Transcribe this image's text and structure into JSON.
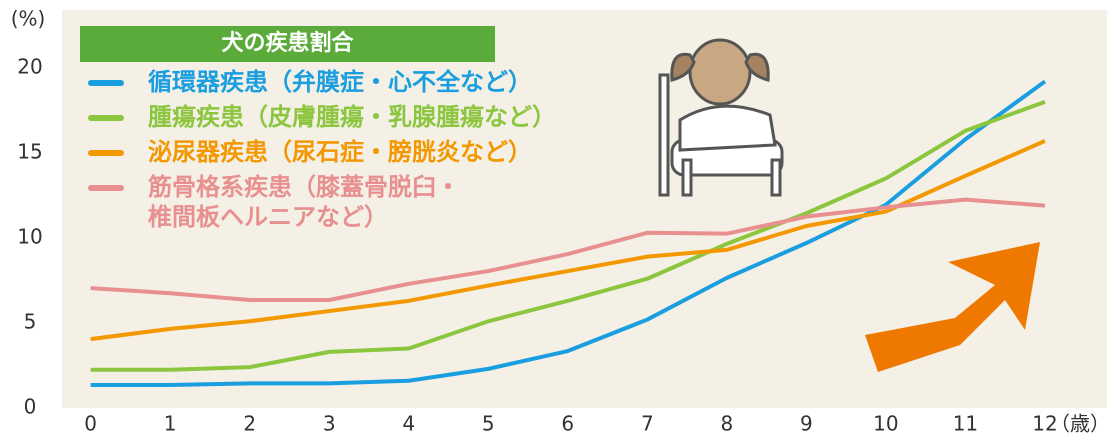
{
  "chart_data": {
    "type": "line",
    "title": "犬の疾患割合",
    "y_label": "(%)",
    "x_label": "（歳）",
    "x": [
      0,
      1,
      2,
      3,
      4,
      5,
      6,
      7,
      8,
      9,
      10,
      11,
      12
    ],
    "xlim": [
      -0.36,
      12.78
    ],
    "ylim": [
      0,
      23.4
    ],
    "yticks": [
      0,
      5,
      10,
      15,
      20
    ],
    "series": [
      {
        "name": "循環器疾患（弁膜症・心不全など）",
        "color": "#1a9ee0",
        "values": [
          1.35,
          1.35,
          1.45,
          1.45,
          1.6,
          2.3,
          3.35,
          5.2,
          7.65,
          9.7,
          11.95,
          15.8,
          19.2
        ]
      },
      {
        "name": "腫瘍疾患（皮膚腫瘍・乳腺腫瘍など）",
        "color": "#8cc63f",
        "values": [
          2.25,
          2.25,
          2.4,
          3.3,
          3.5,
          5.1,
          6.3,
          7.6,
          9.65,
          11.45,
          13.5,
          16.3,
          18.0
        ]
      },
      {
        "name": "泌尿器疾患（尿石症・膀胱炎など）",
        "color": "#f39800",
        "values": [
          4.05,
          4.65,
          5.1,
          5.7,
          6.3,
          7.2,
          8.05,
          8.9,
          9.3,
          10.7,
          11.55,
          13.65,
          15.7
        ]
      },
      {
        "name": "筋骨格系疾患（膝蓋骨脱臼・\n椎間板ヘルニアなど）",
        "color": "#e89090",
        "values": [
          7.05,
          6.75,
          6.35,
          6.35,
          7.3,
          8.05,
          9.05,
          10.3,
          10.25,
          11.25,
          11.8,
          12.25,
          11.9
        ]
      }
    ]
  }
}
